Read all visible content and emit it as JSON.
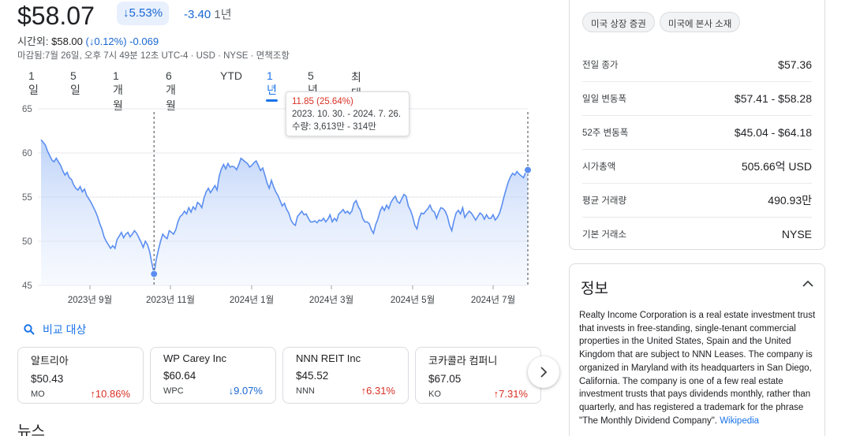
{
  "quote": {
    "price": "$58.07",
    "change_percent": "5.53%",
    "change_abs": "-3.40",
    "change_period": "1년",
    "after_hours_label": "시간외:",
    "after_hours_price": "$58.00",
    "after_hours_pct": "0.12%",
    "after_hours_abs": "-0.069",
    "closed_note": "마감됨:7월 26일, 오후 7시 49분 12초 UTC-4 · USD · NYSE · 면책조항"
  },
  "ranges": [
    "1일",
    "5일",
    "1개월",
    "6개월",
    "YTD",
    "1년",
    "5년",
    "최대"
  ],
  "active_range": "1년",
  "tooltip": {
    "change": "11.85 (25.64%)",
    "dates": "2023. 10. 30. - 2024. 7. 26.",
    "volume": "수량: 3,613만 - 314만"
  },
  "chart_data": {
    "type": "area",
    "x_labels": [
      "2023년 9월",
      "2023년 11월",
      "2024년 1월",
      "2024년 3월",
      "2024년 5월",
      "2024년 7월"
    ],
    "y_ticks": [
      45,
      50,
      55,
      60,
      65
    ],
    "ylim": [
      45,
      65
    ],
    "series": [
      {
        "values": [
          61.5,
          61.2,
          60.9,
          60.2,
          59.7,
          59.2,
          59.0,
          59.4,
          59.0,
          58.6,
          58.0,
          57.5,
          57.8,
          57.2,
          57.0,
          56.4,
          56.0,
          55.8,
          56.2,
          55.6,
          55.9,
          55.2,
          54.8,
          54.4,
          53.9,
          53.4,
          52.8,
          52.0,
          51.4,
          50.5,
          50.0,
          49.6,
          49.2,
          49.5,
          49.2,
          50.2,
          50.6,
          51.0,
          50.4,
          50.8,
          51.0,
          50.5,
          50.8,
          51.2,
          50.9,
          50.4,
          49.9,
          49.3,
          50.0,
          49.6,
          48.8,
          47.5,
          46.3,
          47.9,
          49.0,
          50.0,
          50.8,
          50.5,
          50.3,
          51.2,
          51.0,
          50.8,
          51.3,
          52.2,
          52.8,
          53.0,
          53.4,
          53.1,
          53.8,
          53.3,
          53.9,
          53.6,
          54.4,
          54.2,
          53.8,
          54.9,
          55.6,
          56.0,
          55.5,
          55.9,
          56.3,
          55.8,
          57.4,
          58.2,
          58.7,
          58.2,
          58.8,
          58.4,
          58.5,
          58.4,
          58.1,
          58.7,
          59.4,
          59.2,
          59.0,
          58.8,
          58.4,
          58.6,
          58.9,
          59.1,
          58.6,
          58.0,
          58.3,
          57.5,
          56.6,
          56.0,
          56.9,
          56.2,
          55.6,
          55.2,
          54.6,
          54.0,
          54.3,
          53.6,
          53.2,
          52.4,
          52.0,
          51.8,
          52.8,
          53.1,
          53.4,
          53.0,
          53.1,
          52.6,
          52.2,
          52.2,
          52.3,
          52.1,
          52.4,
          52.3,
          52.6,
          52.2,
          52.5,
          53.0,
          52.2,
          52.6,
          52.3,
          53.1,
          53.3,
          53.6,
          53.2,
          53.4,
          53.1,
          53.4,
          54.3,
          54.6,
          53.9,
          53.5,
          52.6,
          52.2,
          52.2,
          52.0,
          51.3,
          50.9,
          51.9,
          52.5,
          53.4,
          53.9,
          53.5,
          54.1,
          53.7,
          54.4,
          54.8,
          55.1,
          54.5,
          54.3,
          54.8,
          55.3,
          55.1,
          54.0,
          53.5,
          52.8,
          51.8,
          51.4,
          52.6,
          53.2,
          53.1,
          53.4,
          53.7,
          54.1,
          53.5,
          53.3,
          52.6,
          53.3,
          53.8,
          53.7,
          53.4,
          52.8,
          51.8,
          51.2,
          52.3,
          53.2,
          53.5,
          53.1,
          53.8,
          52.7,
          53.1,
          53.4,
          53.2,
          52.8,
          52.4,
          52.8,
          53.2,
          53.0,
          52.5,
          53.0,
          52.6,
          52.6,
          53.0,
          52.4,
          52.7,
          53.2,
          54.0,
          55.0,
          55.9,
          56.7,
          57.3,
          57.7,
          57.5,
          57.9,
          57.6,
          57.4,
          57.2,
          57.8,
          58.07
        ]
      }
    ],
    "reference_line": 55.0,
    "highlight_range": [
      "2023. 10. 30.",
      "2024. 7. 26."
    ],
    "grid": true
  },
  "compare_label": "비교 대상",
  "cards": [
    {
      "name": "알트리아",
      "price": "$50.43",
      "ticker": "MO",
      "change": "10.86%",
      "dir": "up"
    },
    {
      "name": "WP Carey Inc",
      "price": "$60.64",
      "ticker": "WPC",
      "change": "9.07%",
      "dir": "down"
    },
    {
      "name": "NNN REIT Inc",
      "price": "$45.52",
      "ticker": "NNN",
      "change": "6.31%",
      "dir": "up"
    },
    {
      "name": "코카콜라 컴퍼니",
      "price": "$67.05",
      "ticker": "KO",
      "change": "7.31%",
      "dir": "up"
    }
  ],
  "news_title": "뉴스",
  "chips": [
    "미국 상장 증권",
    "미국에 본사 소재"
  ],
  "stats": [
    {
      "k": "전일 종가",
      "v": "$57.36"
    },
    {
      "k": "일일 변동폭",
      "v": "$57.41 - $58.28"
    },
    {
      "k": "52주 변동폭",
      "v": "$45.04 - $64.18"
    },
    {
      "k": "시가총액",
      "v": "505.66억 USD"
    },
    {
      "k": "평균 거래량",
      "v": "490.93만"
    },
    {
      "k": "기본 거래소",
      "v": "NYSE"
    }
  ],
  "info": {
    "title": "정보",
    "description": "Realty Income Corporation is a real estate investment trust that invests in free-standing, single-tenant commercial properties in the United States, Spain and the United Kingdom that are subject to NNN Leases. The company is organized in Maryland with its headquarters in San Diego, California. The company is one of a few real estate investment trusts that pays dividends monthly, rather than quarterly, and has registered a trademark for the phrase \"The Monthly Dividend Company\".",
    "wiki_label": "Wikipedia"
  },
  "colors": {
    "up": "#d93025",
    "down": "#1967d2",
    "accent": "#1a73e8",
    "line": "#5b8ef0"
  }
}
